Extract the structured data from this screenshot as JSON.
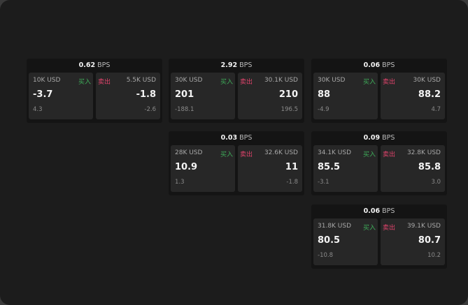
{
  "colors": {
    "buy": "#3fae5a",
    "sell": "#e0436b"
  },
  "labels": {
    "unit": "BPS",
    "buy": "买入",
    "sell": "卖出"
  },
  "panels": [
    {
      "spread": "0.62",
      "buy": {
        "qty": "10K USD",
        "price": "-3.7",
        "change": "4.3"
      },
      "sell": {
        "qty": "5.5K USD",
        "price": "-1.8",
        "change": "-2.6"
      }
    },
    {
      "spread": "2.92",
      "buy": {
        "qty": "30K USD",
        "price": "201",
        "change": "-188.1"
      },
      "sell": {
        "qty": "30.1K USD",
        "price": "210",
        "change": "196.5"
      }
    },
    {
      "spread": "0.06",
      "buy": {
        "qty": "30K USD",
        "price": "88",
        "change": "-4.9"
      },
      "sell": {
        "qty": "30K USD",
        "price": "88.2",
        "change": "4.7"
      }
    },
    {
      "spread": "0.03",
      "buy": {
        "qty": "28K USD",
        "price": "10.9",
        "change": "1.3"
      },
      "sell": {
        "qty": "32.6K USD",
        "price": "11",
        "change": "-1.8"
      }
    },
    {
      "spread": "0.09",
      "buy": {
        "qty": "34.1K USD",
        "price": "85.5",
        "change": "-3.1"
      },
      "sell": {
        "qty": "32.8K USD",
        "price": "85.8",
        "change": "3.0"
      }
    },
    {
      "spread": "0.06",
      "buy": {
        "qty": "31.8K USD",
        "price": "80.5",
        "change": "-10.8"
      },
      "sell": {
        "qty": "39.1K USD",
        "price": "80.7",
        "change": "10.2"
      }
    }
  ]
}
